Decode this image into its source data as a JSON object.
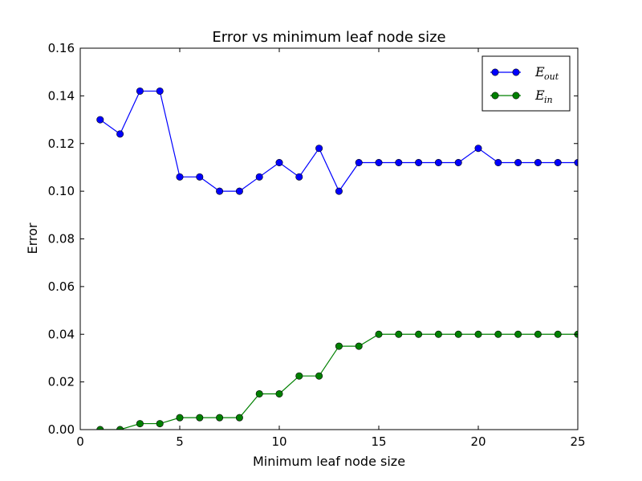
{
  "chart_data": {
    "type": "line",
    "title": "Error vs minimum leaf node size",
    "xlabel": "Minimum leaf node size",
    "ylabel": "Error",
    "xlim": [
      0,
      25
    ],
    "ylim": [
      0,
      0.16
    ],
    "xticks": [
      0,
      5,
      10,
      15,
      20,
      25
    ],
    "xtick_labels": [
      "0",
      "5",
      "10",
      "15",
      "20",
      "25"
    ],
    "yticks": [
      0,
      0.02,
      0.04,
      0.06,
      0.08,
      0.1,
      0.12,
      0.14,
      0.16
    ],
    "ytick_labels": [
      "0.00",
      "0.02",
      "0.04",
      "0.06",
      "0.08",
      "0.10",
      "0.12",
      "0.14",
      "0.16"
    ],
    "grid": false,
    "legend_position": "top-right",
    "x": [
      1,
      2,
      3,
      4,
      5,
      6,
      7,
      8,
      9,
      10,
      11,
      12,
      13,
      14,
      15,
      16,
      17,
      18,
      19,
      20,
      21,
      22,
      23,
      24,
      25
    ],
    "series": [
      {
        "name": "E",
        "name_subscript": "out",
        "color": "#0000ff",
        "values": [
          0.13,
          0.124,
          0.142,
          0.142,
          0.106,
          0.106,
          0.1,
          0.1,
          0.106,
          0.112,
          0.106,
          0.118,
          0.1,
          0.112,
          0.112,
          0.112,
          0.112,
          0.112,
          0.112,
          0.118,
          0.112,
          0.112,
          0.112,
          0.112,
          0.112
        ]
      },
      {
        "name": "E",
        "name_subscript": "in",
        "color": "#008000",
        "values": [
          0.0,
          0.0,
          0.0025,
          0.0025,
          0.005,
          0.005,
          0.005,
          0.005,
          0.015,
          0.015,
          0.0225,
          0.0225,
          0.035,
          0.035,
          0.04,
          0.04,
          0.04,
          0.04,
          0.04,
          0.04,
          0.04,
          0.04,
          0.04,
          0.04,
          0.04
        ]
      }
    ]
  }
}
